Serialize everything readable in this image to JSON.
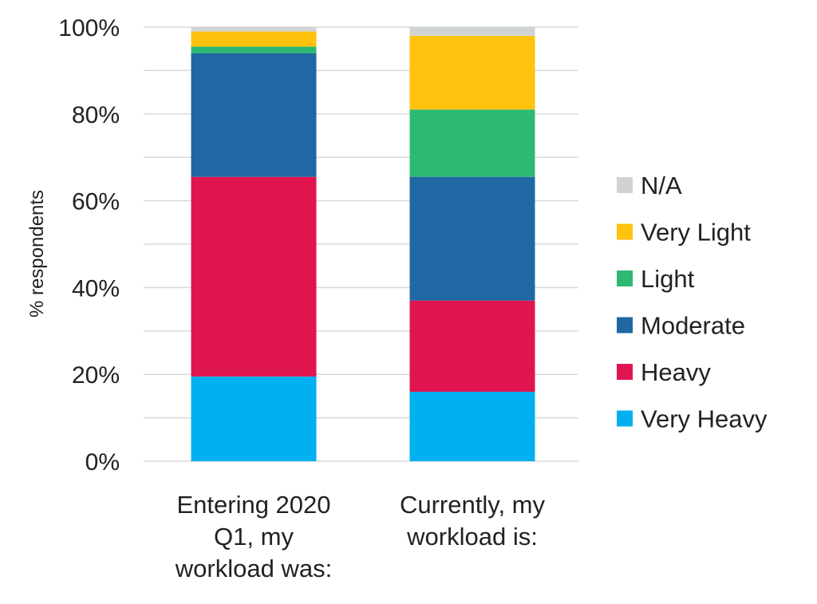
{
  "chart_data": {
    "type": "bar",
    "stacked": true,
    "categories": [
      [
        "Entering 2020",
        "Q1, my",
        "workload was:"
      ],
      [
        "Currently, my",
        "workload is:"
      ]
    ],
    "series": [
      {
        "name": "Very Heavy",
        "color": "#00b0f0",
        "values": [
          19.5,
          16
        ]
      },
      {
        "name": "Heavy",
        "color": "#e0144f",
        "values": [
          46,
          21
        ]
      },
      {
        "name": "Moderate",
        "color": "#1f68a3",
        "values": [
          28.5,
          28.5
        ]
      },
      {
        "name": "Light",
        "color": "#2db873",
        "values": [
          1.5,
          15.5
        ]
      },
      {
        "name": "Very Light",
        "color": "#ffc20e",
        "values": [
          3.5,
          17
        ]
      },
      {
        "name": "N/A",
        "color": "#d0d3d4",
        "values": [
          1,
          2
        ]
      }
    ],
    "ylabel": "% respondents",
    "ylim": [
      0,
      100
    ],
    "yticks": [
      "0%",
      "20%",
      "40%",
      "60%",
      "80%",
      "100%"
    ],
    "ytick_values": [
      0,
      20,
      40,
      60,
      80,
      100
    ],
    "minor_gridlines": true,
    "legend_position": "right",
    "legend_order": "reverse"
  }
}
